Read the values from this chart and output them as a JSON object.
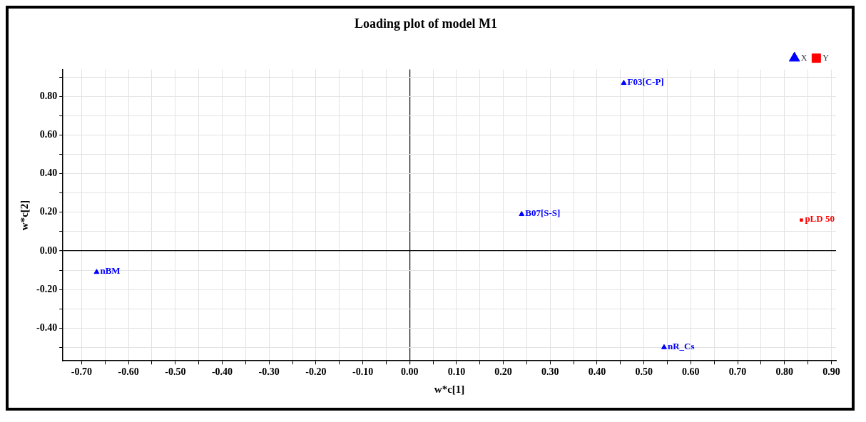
{
  "chart_data": {
    "type": "scatter",
    "title": "Loading plot of model M1",
    "xlabel": "w*c[1]",
    "ylabel": "w*c[2]",
    "series": [
      {
        "name": "X",
        "color": "#0000ff",
        "marker": "triangle",
        "x": [
          -0.668,
          0.239,
          0.457,
          0.543
        ],
        "values": [
          -0.11,
          0.19,
          0.87,
          -0.5
        ]
      },
      {
        "name": "Y",
        "color": "#ff0000",
        "marker": "square",
        "x": [
          0.836
        ],
        "values": [
          0.16
        ]
      }
    ],
    "annotations": [
      {
        "text": "nBM",
        "x": -0.668,
        "y": -0.11
      },
      {
        "text": "B07[S-S]",
        "x": 0.239,
        "y": 0.19
      },
      {
        "text": "F03[C-P]",
        "x": 0.457,
        "y": 0.87
      },
      {
        "text": "nR_Cs",
        "x": 0.543,
        "y": -0.5
      },
      {
        "text": "pLD 50",
        "x": 0.836,
        "y": 0.16
      }
    ],
    "xlim": [
      -0.74,
      0.91
    ],
    "xticks": [
      {
        "value": -0.7,
        "label": "-0.70"
      },
      {
        "value": -0.65,
        "label": null
      },
      {
        "value": -0.6,
        "label": "-0.60"
      },
      {
        "value": -0.55,
        "label": null
      },
      {
        "value": -0.5,
        "label": "-0.50"
      },
      {
        "value": -0.45,
        "label": null
      },
      {
        "value": -0.4,
        "label": "-0.40"
      },
      {
        "value": -0.35,
        "label": null
      },
      {
        "value": -0.3,
        "label": "-0.30"
      },
      {
        "value": -0.25,
        "label": null
      },
      {
        "value": -0.2,
        "label": "-0.20"
      },
      {
        "value": -0.15,
        "label": null
      },
      {
        "value": -0.1,
        "label": "-0.10"
      },
      {
        "value": -0.05,
        "label": null
      },
      {
        "value": 0,
        "label": "0.00"
      },
      {
        "value": 0.05,
        "label": null
      },
      {
        "value": 0.1,
        "label": "0.10"
      },
      {
        "value": 0.15,
        "label": null
      },
      {
        "value": 0.2,
        "label": "0.20"
      },
      {
        "value": 0.25,
        "label": null
      },
      {
        "value": 0.3,
        "label": "0.30"
      },
      {
        "value": 0.35,
        "label": null
      },
      {
        "value": 0.4,
        "label": "0.40"
      },
      {
        "value": 0.45,
        "label": null
      },
      {
        "value": 0.5,
        "label": "0.50"
      },
      {
        "value": 0.55,
        "label": null
      },
      {
        "value": 0.6,
        "label": "0.60"
      },
      {
        "value": 0.65,
        "label": null
      },
      {
        "value": 0.7,
        "label": "0.70"
      },
      {
        "value": 0.75,
        "label": null
      },
      {
        "value": 0.8,
        "label": "0.80"
      },
      {
        "value": 0.85,
        "label": null
      },
      {
        "value": 0.9,
        "label": "0.90"
      }
    ],
    "ylim": [
      -0.57,
      0.94
    ],
    "yticks": [
      {
        "value": -0.5,
        "label": null
      },
      {
        "value": -0.4,
        "label": "-0.40"
      },
      {
        "value": -0.3,
        "label": null
      },
      {
        "value": -0.2,
        "label": "-0.20"
      },
      {
        "value": -0.1,
        "label": null
      },
      {
        "value": 0,
        "label": "0.00"
      },
      {
        "value": 0.1,
        "label": null
      },
      {
        "value": 0.2,
        "label": "0.20"
      },
      {
        "value": 0.3,
        "label": null
      },
      {
        "value": 0.4,
        "label": "0.40"
      },
      {
        "value": 0.5,
        "label": null
      },
      {
        "value": 0.6,
        "label": "0.60"
      },
      {
        "value": 0.7,
        "label": null
      },
      {
        "value": 0.8,
        "label": "0.80"
      },
      {
        "value": 0.9,
        "label": null
      }
    ],
    "grid": true,
    "legend": "top right"
  }
}
